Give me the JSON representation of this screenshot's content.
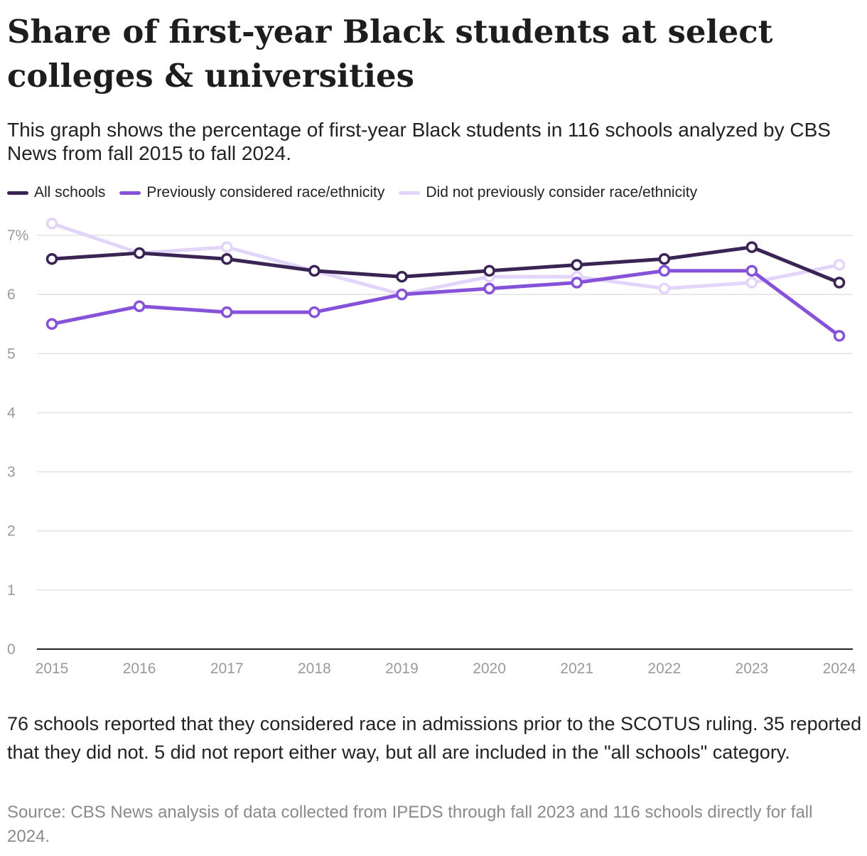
{
  "title": "Share of first-year Black students at select colleges & universities",
  "subtitle": "This graph shows the percentage of first-year Black students in 116 schools analyzed by CBS News from fall 2015 to fall 2024.",
  "note": "76 schools reported that they considered race in admissions prior to the SCOTUS ruling. 35 reported that they did not. 5 did not report either way, but all are included in the \"all schools\" category.",
  "source": "Source: CBS News analysis of data collected from IPEDS through fall 2023 and 116 schools directly for fall 2024.",
  "chart_data": {
    "type": "line",
    "title": "Share of first-year Black students at select colleges & universities",
    "xlabel": "",
    "ylabel": "",
    "x": [
      "2015",
      "2016",
      "2017",
      "2018",
      "2019",
      "2020",
      "2021",
      "2022",
      "2023",
      "2024"
    ],
    "ylim": [
      0,
      7.5
    ],
    "yticks": [
      0,
      1,
      2,
      3,
      4,
      5,
      6,
      7
    ],
    "ytick_labels": [
      "0",
      "1",
      "2",
      "3",
      "4",
      "5",
      "6",
      "7%"
    ],
    "legend_position": "top-left",
    "series": [
      {
        "name": "Did not previously consider race/ethnicity",
        "color": "#e2d5fa",
        "values": [
          7.2,
          6.7,
          6.8,
          6.4,
          6.0,
          6.3,
          6.3,
          6.1,
          6.2,
          6.5
        ]
      },
      {
        "name": "Previously considered race/ethnicity",
        "color": "#8652d9",
        "values": [
          5.5,
          5.8,
          5.7,
          5.7,
          6.0,
          6.1,
          6.2,
          6.4,
          6.4,
          5.3
        ]
      },
      {
        "name": "All schools",
        "color": "#3a2453",
        "values": [
          6.6,
          6.7,
          6.6,
          6.4,
          6.3,
          6.4,
          6.5,
          6.6,
          6.8,
          6.2
        ]
      }
    ]
  }
}
